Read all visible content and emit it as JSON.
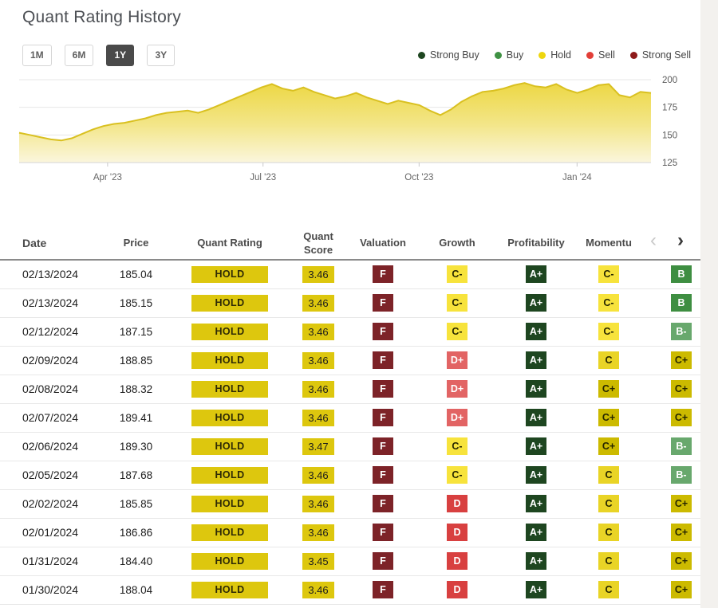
{
  "title": "Quant Rating History",
  "range_buttons": [
    {
      "label": "1M",
      "active": false
    },
    {
      "label": "6M",
      "active": false
    },
    {
      "label": "1Y",
      "active": true
    },
    {
      "label": "3Y",
      "active": false
    }
  ],
  "legend": {
    "items": [
      {
        "label": "Strong Buy",
        "color": "#1e4620"
      },
      {
        "label": "Buy",
        "color": "#3f9143"
      },
      {
        "label": "Hold",
        "color": "#eed60e"
      },
      {
        "label": "Sell",
        "color": "#e23f38"
      },
      {
        "label": "Strong Sell",
        "color": "#8e1a1a"
      }
    ]
  },
  "chart_data": {
    "type": "area",
    "title": "",
    "xlabel": "",
    "ylabel": "",
    "ylim": [
      125,
      200
    ],
    "y_ticks": [
      200,
      175,
      150,
      125
    ],
    "x_ticks": [
      {
        "label": "Apr '23",
        "pos": 0.14
      },
      {
        "label": "Jul '23",
        "pos": 0.386
      },
      {
        "label": "Oct '23",
        "pos": 0.633
      },
      {
        "label": "Jan '24",
        "pos": 0.883
      }
    ],
    "grid": true,
    "legend_position": "none",
    "line_color": "#d9c020",
    "fill_top": "#ecd63e",
    "fill_mid": "#f3e68a",
    "fill_bottom": "#fbf6dd",
    "series": [
      {
        "name": "Price",
        "values": [
          152,
          150,
          148,
          146,
          145,
          147,
          151,
          155,
          158,
          160,
          161,
          163,
          165,
          168,
          170,
          171,
          172,
          170,
          173,
          177,
          181,
          185,
          189,
          193,
          196,
          192,
          190,
          193,
          189,
          186,
          183,
          185,
          188,
          184,
          181,
          178,
          181,
          179,
          177,
          172,
          168,
          173,
          180,
          185,
          189,
          190,
          192,
          195,
          197,
          194,
          193,
          196,
          191,
          188,
          191,
          195,
          196,
          186,
          184,
          189,
          188
        ]
      }
    ]
  },
  "table": {
    "columns": [
      "Date",
      "Price",
      "Quant Rating",
      "Quant Score",
      "Valuation",
      "Growth",
      "Profitability",
      "Momentu",
      ""
    ],
    "nav": {
      "prev_icon": "‹",
      "next_icon": "›"
    },
    "rows": [
      {
        "date": "02/13/2024",
        "price": "185.04",
        "rating": "HOLD",
        "score": "3.46",
        "grades": [
          "F",
          "C-",
          "A+",
          "C-",
          "B"
        ]
      },
      {
        "date": "02/13/2024",
        "price": "185.15",
        "rating": "HOLD",
        "score": "3.46",
        "grades": [
          "F",
          "C-",
          "A+",
          "C-",
          "B"
        ]
      },
      {
        "date": "02/12/2024",
        "price": "187.15",
        "rating": "HOLD",
        "score": "3.46",
        "grades": [
          "F",
          "C-",
          "A+",
          "C-",
          "B-"
        ]
      },
      {
        "date": "02/09/2024",
        "price": "188.85",
        "rating": "HOLD",
        "score": "3.46",
        "grades": [
          "F",
          "D+",
          "A+",
          "C",
          "C+"
        ]
      },
      {
        "date": "02/08/2024",
        "price": "188.32",
        "rating": "HOLD",
        "score": "3.46",
        "grades": [
          "F",
          "D+",
          "A+",
          "C+",
          "C+"
        ]
      },
      {
        "date": "02/07/2024",
        "price": "189.41",
        "rating": "HOLD",
        "score": "3.46",
        "grades": [
          "F",
          "D+",
          "A+",
          "C+",
          "C+"
        ]
      },
      {
        "date": "02/06/2024",
        "price": "189.30",
        "rating": "HOLD",
        "score": "3.47",
        "grades": [
          "F",
          "C-",
          "A+",
          "C+",
          "B-"
        ]
      },
      {
        "date": "02/05/2024",
        "price": "187.68",
        "rating": "HOLD",
        "score": "3.46",
        "grades": [
          "F",
          "C-",
          "A+",
          "C",
          "B-"
        ]
      },
      {
        "date": "02/02/2024",
        "price": "185.85",
        "rating": "HOLD",
        "score": "3.46",
        "grades": [
          "F",
          "D",
          "A+",
          "C",
          "C+"
        ]
      },
      {
        "date": "02/01/2024",
        "price": "186.86",
        "rating": "HOLD",
        "score": "3.46",
        "grades": [
          "F",
          "D",
          "A+",
          "C",
          "C+"
        ]
      },
      {
        "date": "01/31/2024",
        "price": "184.40",
        "rating": "HOLD",
        "score": "3.45",
        "grades": [
          "F",
          "D",
          "A+",
          "C",
          "C+"
        ]
      },
      {
        "date": "01/30/2024",
        "price": "188.04",
        "rating": "HOLD",
        "score": "3.46",
        "grades": [
          "F",
          "D",
          "A+",
          "C",
          "C+"
        ]
      }
    ]
  },
  "rating_badge": {
    "bg": "#ddc70e",
    "fg": "#2e2a05"
  },
  "grade_colors": {
    "A+": {
      "bg": "#1e4620",
      "fg": "#ffffff"
    },
    "B": {
      "bg": "#3e8e41",
      "fg": "#ffffff"
    },
    "B-": {
      "bg": "#68a86d",
      "fg": "#ffffff"
    },
    "C+": {
      "bg": "#ccba00",
      "fg": "#262600"
    },
    "C": {
      "bg": "#e9d426",
      "fg": "#262600"
    },
    "C-": {
      "bg": "#f7e33c",
      "fg": "#262600"
    },
    "D": {
      "bg": "#d84040",
      "fg": "#ffffff"
    },
    "D+": {
      "bg": "#e26464",
      "fg": "#ffffff"
    },
    "F": {
      "bg": "#7d2328",
      "fg": "#ffffff"
    }
  }
}
